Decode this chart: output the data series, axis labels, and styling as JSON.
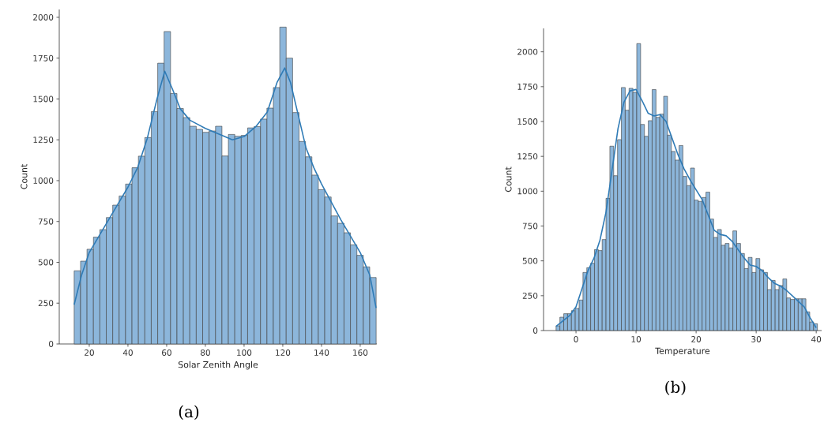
{
  "chart_data": [
    {
      "type": "histogram",
      "xlabel": "Solar Zenith Angle",
      "ylabel": "Count",
      "xlim": [
        4.5,
        168.6
      ],
      "ylim": [
        0,
        2048
      ],
      "xticks": [
        20,
        40,
        60,
        80,
        100,
        120,
        140,
        160
      ],
      "yticks": [
        0,
        250,
        500,
        750,
        1000,
        1250,
        1500,
        1750,
        2000
      ],
      "annotations": [
        "(a)"
      ],
      "series": [
        {
          "type": "histogram",
          "color": "#8cb6db",
          "bins": [
            12.2,
            15.52,
            18.84,
            22.16,
            25.48,
            28.8,
            32.12,
            35.44,
            38.76,
            42.08,
            45.4,
            48.72,
            52.04,
            55.36,
            58.68,
            62.0,
            65.32,
            68.64,
            71.96,
            75.28,
            78.6,
            81.92,
            85.24,
            88.56,
            91.88,
            95.2,
            98.52,
            101.84,
            105.16,
            108.48,
            111.8,
            115.12,
            118.44,
            121.76,
            125.08,
            128.4,
            131.72,
            135.04,
            138.36,
            141.68,
            145.0,
            148.32,
            151.64,
            154.96,
            158.28,
            161.6,
            164.92,
            168.24
          ],
          "values": [
            448,
            507,
            580,
            654,
            700,
            774,
            850,
            906,
            979,
            1079,
            1150,
            1264,
            1423,
            1719,
            1913,
            1534,
            1442,
            1386,
            1333,
            1314,
            1296,
            1304,
            1333,
            1151,
            1283,
            1272,
            1277,
            1323,
            1331,
            1377,
            1444,
            1570,
            1940,
            1750,
            1417,
            1240,
            1146,
            1034,
            945,
            900,
            784,
            739,
            681,
            607,
            543,
            472,
            407
          ]
        },
        {
          "type": "line",
          "color": "#2f7bb6",
          "x": [
            12.2,
            16,
            20,
            25,
            30,
            35,
            40,
            45,
            50,
            55,
            59,
            63,
            67,
            72,
            80,
            88,
            94,
            100,
            106,
            112,
            117,
            121,
            124,
            128,
            132,
            136,
            140,
            145,
            150,
            155,
            160,
            165,
            168.2
          ],
          "values": [
            240,
            420,
            560,
            660,
            760,
            860,
            960,
            1080,
            1260,
            1500,
            1670,
            1560,
            1440,
            1370,
            1320,
            1280,
            1250,
            1270,
            1330,
            1420,
            1600,
            1690,
            1600,
            1400,
            1200,
            1080,
            980,
            870,
            760,
            660,
            560,
            420,
            220
          ]
        }
      ]
    },
    {
      "type": "histogram",
      "xlabel": "Temperature",
      "ylabel": "Count",
      "xlim": [
        -5.4,
        40.9
      ],
      "ylim": [
        0,
        2168
      ],
      "xticks": [
        0,
        10,
        20,
        30,
        40
      ],
      "yticks": [
        0,
        250,
        500,
        750,
        1000,
        1250,
        1500,
        1750,
        2000
      ],
      "annotations": [
        "(b)"
      ],
      "series": [
        {
          "type": "histogram",
          "color": "#8cb6db",
          "bins": [
            -3.32,
            -2.68,
            -2.04,
            -1.4,
            -0.76,
            -0.12,
            0.52,
            1.16,
            1.8,
            2.44,
            3.08,
            3.72,
            4.36,
            5.0,
            5.64,
            6.28,
            6.92,
            7.56,
            8.2,
            8.84,
            9.48,
            10.12,
            10.76,
            11.4,
            12.04,
            12.68,
            13.32,
            13.96,
            14.6,
            15.24,
            15.88,
            16.52,
            17.16,
            17.8,
            18.44,
            19.08,
            19.72,
            20.36,
            21.0,
            21.64,
            22.28,
            22.92,
            23.56,
            24.2,
            24.84,
            25.48,
            26.12,
            26.76,
            27.4,
            28.04,
            28.68,
            29.32,
            29.96,
            30.6,
            31.24,
            31.88,
            32.52,
            33.16,
            33.8,
            34.44,
            35.08,
            35.72,
            36.36,
            37.0,
            37.64,
            38.28,
            38.92,
            39.56,
            40.2
          ],
          "values": [
            34,
            96,
            121,
            121,
            143,
            159,
            219,
            417,
            451,
            483,
            581,
            574,
            653,
            949,
            1323,
            1111,
            1370,
            1744,
            1581,
            1738,
            1710,
            2059,
            1479,
            1394,
            1506,
            1729,
            1530,
            1553,
            1681,
            1402,
            1285,
            1223,
            1328,
            1106,
            1040,
            1166,
            936,
            927,
            955,
            993,
            800,
            668,
            725,
            612,
            625,
            593,
            715,
            625,
            553,
            445,
            525,
            417,
            517,
            436,
            417,
            294,
            360,
            294,
            323,
            370,
            234,
            223,
            228,
            228,
            228,
            134,
            62,
            49
          ]
        },
        {
          "type": "line",
          "color": "#2f7bb6",
          "x": [
            -3.3,
            -1,
            0,
            1,
            2,
            3,
            4,
            5,
            6,
            7,
            8,
            9,
            10,
            11,
            12,
            13,
            14,
            15,
            16,
            17,
            18,
            19,
            20,
            21,
            22,
            23,
            24,
            25,
            26,
            27,
            28,
            29,
            30,
            31,
            32,
            33,
            34,
            35,
            36,
            37,
            38,
            39,
            40
          ],
          "values": [
            30,
            110,
            170,
            300,
            430,
            520,
            650,
            850,
            1150,
            1450,
            1640,
            1720,
            1730,
            1650,
            1560,
            1540,
            1550,
            1500,
            1380,
            1260,
            1160,
            1080,
            1010,
            940,
            830,
            720,
            690,
            680,
            640,
            580,
            520,
            470,
            460,
            430,
            380,
            340,
            320,
            290,
            250,
            210,
            170,
            90,
            20
          ]
        }
      ]
    }
  ]
}
